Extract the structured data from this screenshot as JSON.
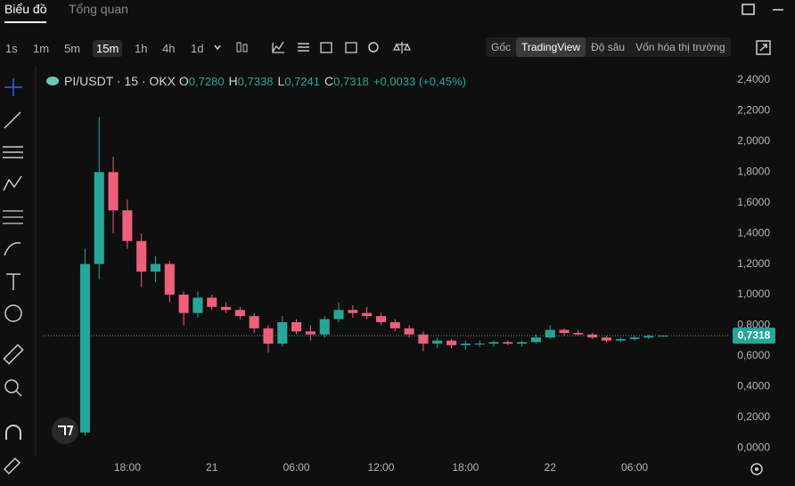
{
  "ui": {
    "tabs": [
      "Biểu đồ",
      "Tổng quan"
    ],
    "intervals": [
      "1s",
      "1m",
      "5m",
      "15m",
      "1h",
      "4h",
      "1d"
    ],
    "active_interval": "15m",
    "views": [
      "Gốc",
      "TradingView",
      "Độ sâu",
      "Vốn hóa thị trường"
    ],
    "active_view": "TradingView"
  },
  "legend": {
    "symbol": "PI/USDT · 15 · OKX",
    "ohlc": [
      {
        "key": "O",
        "value": "0,7280"
      },
      {
        "key": "H",
        "value": "0,7338"
      },
      {
        "key": "L",
        "value": "0,7241"
      },
      {
        "key": "C",
        "value": "0,7318"
      }
    ],
    "change": "+0,0033 (+0,45%)"
  },
  "chart_data": {
    "type": "candlestick",
    "x": [
      15,
      16,
      17,
      18,
      19,
      20,
      21,
      22,
      23,
      24,
      25,
      26,
      27,
      28,
      29,
      30,
      31,
      32,
      33,
      34,
      35,
      36,
      37,
      38,
      39,
      40,
      41,
      42,
      43,
      44,
      45,
      46,
      47,
      48,
      49,
      50,
      51,
      52,
      53,
      54,
      55,
      56
    ],
    "open": [
      0.1,
      1.2,
      1.8,
      1.55,
      1.35,
      1.15,
      1.2,
      1.0,
      0.88,
      0.98,
      0.92,
      0.9,
      0.86,
      0.78,
      0.68,
      0.82,
      0.76,
      0.74,
      0.84,
      0.9,
      0.88,
      0.86,
      0.82,
      0.78,
      0.74,
      0.68,
      0.7,
      0.67,
      0.68,
      0.68,
      0.69,
      0.68,
      0.69,
      0.72,
      0.77,
      0.75,
      0.74,
      0.72,
      0.7,
      0.71,
      0.72,
      0.73
    ],
    "high": [
      1.3,
      2.16,
      1.9,
      1.62,
      1.4,
      1.25,
      1.22,
      1.02,
      1.02,
      1.0,
      0.95,
      0.92,
      0.88,
      0.8,
      0.86,
      0.84,
      0.8,
      0.86,
      0.95,
      0.93,
      0.92,
      0.88,
      0.84,
      0.8,
      0.76,
      0.72,
      0.71,
      0.7,
      0.7,
      0.7,
      0.7,
      0.7,
      0.74,
      0.8,
      0.78,
      0.77,
      0.75,
      0.73,
      0.72,
      0.73,
      0.74,
      0.7338
    ],
    "low": [
      0.08,
      1.1,
      1.4,
      1.3,
      1.05,
      1.08,
      0.95,
      0.8,
      0.85,
      0.9,
      0.88,
      0.84,
      0.75,
      0.62,
      0.66,
      0.74,
      0.7,
      0.72,
      0.82,
      0.85,
      0.84,
      0.8,
      0.76,
      0.72,
      0.63,
      0.65,
      0.65,
      0.64,
      0.66,
      0.66,
      0.67,
      0.66,
      0.68,
      0.71,
      0.73,
      0.73,
      0.71,
      0.69,
      0.69,
      0.7,
      0.71,
      0.7241
    ],
    "close": [
      1.2,
      1.8,
      1.55,
      1.35,
      1.15,
      1.2,
      1.0,
      0.88,
      0.98,
      0.92,
      0.9,
      0.86,
      0.78,
      0.68,
      0.82,
      0.76,
      0.74,
      0.84,
      0.9,
      0.88,
      0.86,
      0.82,
      0.78,
      0.74,
      0.68,
      0.7,
      0.67,
      0.68,
      0.68,
      0.69,
      0.68,
      0.69,
      0.72,
      0.77,
      0.75,
      0.74,
      0.72,
      0.7,
      0.71,
      0.72,
      0.73,
      0.7318
    ],
    "up_color": "#26a69a",
    "down_color": "#ef5f7a",
    "xlim": [
      12,
      60.7
    ],
    "xticks": [
      {
        "value": 18,
        "label": "18:00"
      },
      {
        "value": 24,
        "label": "21"
      },
      {
        "value": 30,
        "label": "06:00"
      },
      {
        "value": 36,
        "label": "12:00"
      },
      {
        "value": 42,
        "label": "18:00"
      },
      {
        "value": 48,
        "label": "22"
      },
      {
        "value": 54,
        "label": "06:00"
      }
    ],
    "ylim": [
      -0.04,
      2.47
    ],
    "yticks": [
      {
        "value": 0,
        "label": "0,0000"
      },
      {
        "value": 0.2,
        "label": "0,2000"
      },
      {
        "value": 0.4,
        "label": "0,4000"
      },
      {
        "value": 0.6,
        "label": "0,6000"
      },
      {
        "value": 0.8,
        "label": "0,8000"
      },
      {
        "value": 1.0,
        "label": "1,0000"
      },
      {
        "value": 1.2,
        "label": "1,2000"
      },
      {
        "value": 1.4,
        "label": "1,4000"
      },
      {
        "value": 1.6,
        "label": "1,6000"
      },
      {
        "value": 1.8,
        "label": "1,8000"
      },
      {
        "value": 2.0,
        "label": "2,0000"
      },
      {
        "value": 2.2,
        "label": "2,2000"
      },
      {
        "value": 2.4,
        "label": "2,4000"
      }
    ],
    "last_price": {
      "value": 0.7318,
      "label": "0,7318"
    },
    "grid": false
  }
}
